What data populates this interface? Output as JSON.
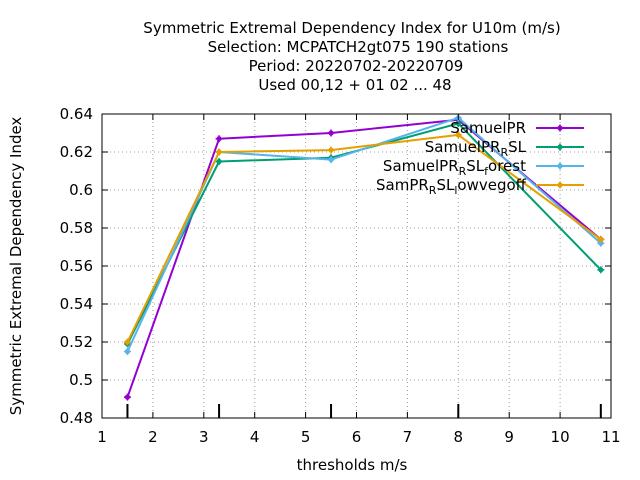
{
  "chart_data": {
    "type": "line",
    "title_lines": [
      "Symmetric Extremal Dependency Index  for U10m (m/s)",
      "Selection: MCPATCH2gt075    190 stations",
      "Period: 20220702-20220709",
      "Used  00,12  + 01 02 ... 48"
    ],
    "xlabel": "thresholds m/s",
    "ylabel": "Symmetric Extremal Dependency Index",
    "xlim": [
      1,
      11
    ],
    "ylim": [
      0.48,
      0.64
    ],
    "xticks": [
      1,
      2,
      3,
      4,
      5,
      6,
      7,
      8,
      9,
      10,
      11
    ],
    "yticks": [
      "0.48",
      "0.5",
      "0.52",
      "0.54",
      "0.56",
      "0.58",
      "0.6",
      "0.62",
      "0.64"
    ],
    "grid": true,
    "legend_position": "top-right",
    "threshold_markers": [
      1.5,
      3.3,
      5.5,
      8.0,
      10.8
    ],
    "series": [
      {
        "name": "SamuelPR",
        "color": "#9400d3",
        "x": [
          1.5,
          3.3,
          5.5,
          8.0,
          10.8
        ],
        "y": [
          0.491,
          0.627,
          0.63,
          0.637,
          0.574
        ]
      },
      {
        "name": "SamuelPR_RSL",
        "color": "#009e73",
        "x": [
          1.5,
          3.3,
          5.5,
          8.0,
          10.8
        ],
        "y": [
          0.519,
          0.615,
          0.617,
          0.635,
          0.558
        ]
      },
      {
        "name": "SamuelPR_RSL_forest",
        "color": "#56b4e9",
        "x": [
          1.5,
          3.3,
          5.5,
          8.0,
          10.8
        ],
        "y": [
          0.515,
          0.62,
          0.616,
          0.638,
          0.572
        ]
      },
      {
        "name": "SamPR_RSL_lowvegoff",
        "color": "#e69f00",
        "x": [
          1.5,
          3.3,
          5.5,
          8.0,
          10.8
        ],
        "y": [
          0.52,
          0.62,
          0.621,
          0.629,
          0.574
        ]
      }
    ],
    "legend_labels": [
      {
        "main": "SamuelPR",
        "parts": []
      },
      {
        "main": "SamuelPR",
        "parts": [
          {
            "sub": "R"
          },
          {
            "text": "SL"
          }
        ]
      },
      {
        "main": "SamuelPR",
        "parts": [
          {
            "sub": "R"
          },
          {
            "text": "SL"
          },
          {
            "sub": "f"
          },
          {
            "text": "orest"
          }
        ]
      },
      {
        "main": "SamPR",
        "parts": [
          {
            "sub": "R"
          },
          {
            "text": "SL"
          },
          {
            "sub": "l"
          },
          {
            "text": "owvegoff"
          }
        ]
      }
    ]
  }
}
